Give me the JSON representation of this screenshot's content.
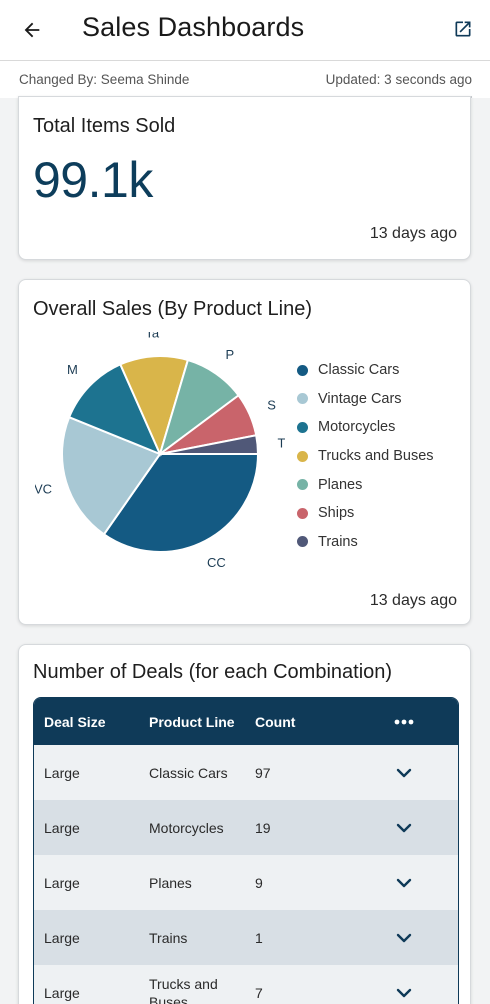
{
  "header": {
    "title": "Sales Dashboards",
    "back_icon": "arrow-left-icon",
    "open_icon": "open-in-new-icon"
  },
  "info": {
    "changed_by": "Changed By: Seema Shinde",
    "updated": "Updated: 3 seconds ago"
  },
  "kpi_card": {
    "title": "Total Items Sold",
    "value": "99.1k",
    "timestamp": "13 days ago"
  },
  "pie_card": {
    "title": "Overall Sales (By Product Line)",
    "timestamp": "13 days ago"
  },
  "chart_data": {
    "type": "pie",
    "title": "Overall Sales (By Product Line)",
    "categories": [
      "Classic Cars",
      "Vintage Cars",
      "Motorcycles",
      "Trucks and Buses",
      "Planes",
      "Ships",
      "Trains"
    ],
    "labels": [
      "CC",
      "VC",
      "M",
      "Ta",
      "P",
      "S",
      "T"
    ],
    "values": [
      34,
      21,
      12,
      11,
      10,
      7,
      3
    ],
    "colors": [
      "#145a83",
      "#a8c8d4",
      "#1d7390",
      "#d9b54a",
      "#76b3a6",
      "#c9646b",
      "#505878"
    ],
    "legend_position": "right"
  },
  "deals_card": {
    "title": "Number of Deals (for each Combination)",
    "columns": [
      "Deal Size",
      "Product Line",
      "Count"
    ],
    "menu_icon": "more-horizontal-icon",
    "rows": [
      {
        "size": "Large",
        "line": "Classic Cars",
        "count": "97"
      },
      {
        "size": "Large",
        "line": "Motorcycles",
        "count": "19"
      },
      {
        "size": "Large",
        "line": "Planes",
        "count": "9"
      },
      {
        "size": "Large",
        "line": "Trains",
        "count": "1"
      },
      {
        "size": "Large",
        "line": "Trucks and Buses",
        "count": "7"
      }
    ]
  }
}
